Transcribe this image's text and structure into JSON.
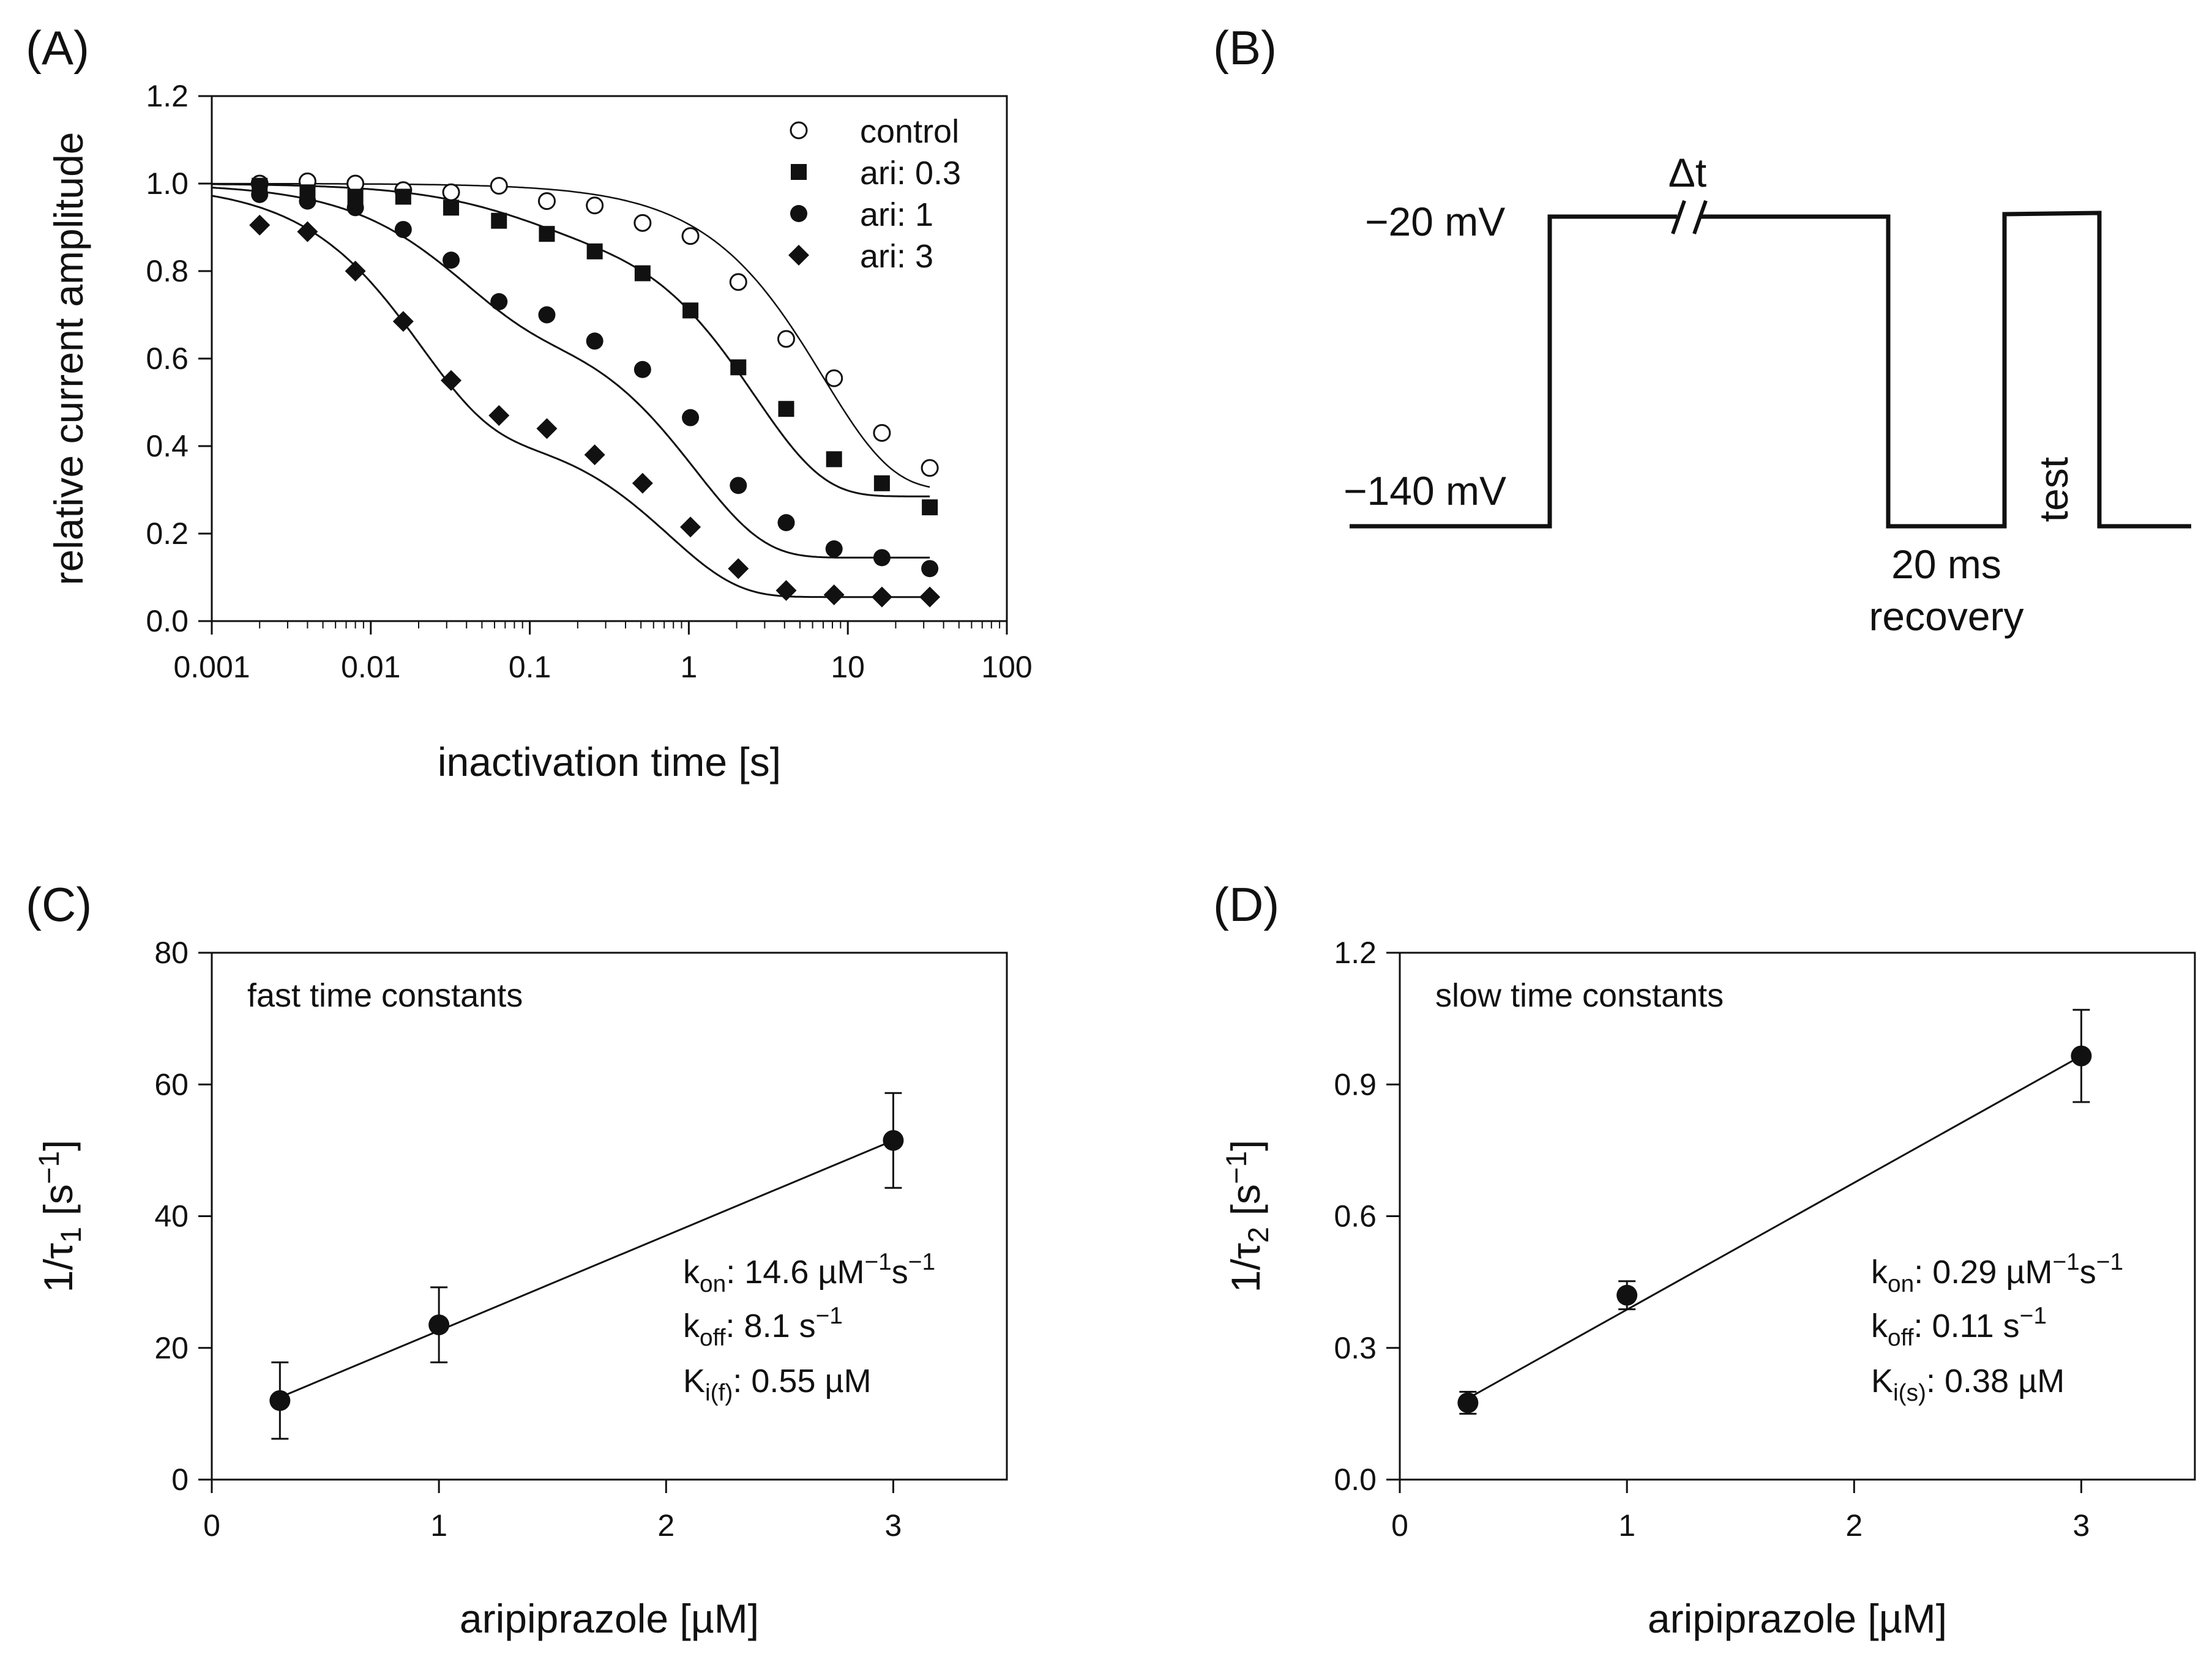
{
  "chart_data": [
    {
      "panel": "(A)",
      "type": "scatter",
      "xscale": "log",
      "xlabel": "inactivation time [s]",
      "ylabel": "relative current amplitude",
      "xlim": [
        0.001,
        100
      ],
      "ylim": [
        0.0,
        1.2
      ],
      "xticks": [
        "0.001",
        "0.01",
        "0.1",
        "1",
        "10",
        "100"
      ],
      "yticks": [
        "0.0",
        "0.2",
        "0.4",
        "0.6",
        "0.8",
        "1.0",
        "1.2"
      ],
      "legend_position": "top-right",
      "x": [
        0.002,
        0.004,
        0.008,
        0.016,
        0.032,
        0.064,
        0.128,
        0.256,
        0.512,
        1.024,
        2.048,
        4.096,
        8.192,
        16.384,
        32.768
      ],
      "series": [
        {
          "name": "control",
          "marker": "open-circle",
          "values": [
            1.0,
            1.005,
            1.0,
            0.985,
            0.98,
            0.995,
            0.96,
            0.95,
            0.91,
            0.88,
            0.775,
            0.645,
            0.555,
            0.43,
            0.35
          ],
          "fit": {
            "plateau": 0.3,
            "fast_amp": 0.0,
            "tau_fast": 0.05,
            "tau_slow": 7.0
          }
        },
        {
          "name": "ari: 0.3",
          "marker": "filled-square",
          "values": [
            0.995,
            0.98,
            0.97,
            0.97,
            0.945,
            0.915,
            0.885,
            0.845,
            0.795,
            0.71,
            0.58,
            0.485,
            0.37,
            0.315,
            0.26
          ],
          "fit": {
            "plateau": 0.285,
            "fast_amp": 0.09,
            "tau_fast": 0.08,
            "tau_slow": 2.6
          }
        },
        {
          "name": "ari: 1",
          "marker": "filled-circle",
          "values": [
            0.975,
            0.96,
            0.945,
            0.895,
            0.825,
            0.73,
            0.7,
            0.64,
            0.575,
            0.465,
            0.31,
            0.225,
            0.165,
            0.145,
            0.12
          ],
          "fit": {
            "plateau": 0.145,
            "fast_amp": 0.31,
            "tau_fast": 0.035,
            "tau_slow": 1.1
          }
        },
        {
          "name": "ari: 3",
          "marker": "filled-diamond",
          "values": [
            0.905,
            0.89,
            0.8,
            0.685,
            0.55,
            0.47,
            0.44,
            0.38,
            0.315,
            0.215,
            0.12,
            0.07,
            0.06,
            0.055,
            0.055
          ],
          "fit": {
            "plateau": 0.055,
            "fast_amp": 0.56,
            "tau_fast": 0.02,
            "tau_slow": 0.75
          }
        }
      ]
    },
    {
      "panel": "(C)",
      "type": "scatter",
      "title": "fast time constants",
      "xlabel": "aripiprazole [µM]",
      "ylabel_main": "1/τ",
      "ylabel_sub": "1",
      "ylabel_unit": " [s",
      "ylabel_sup": "−1",
      "ylabel_close": "]",
      "xlim": [
        0,
        3.5
      ],
      "ylim": [
        0,
        80
      ],
      "xticks": [
        "0",
        "1",
        "2",
        "3"
      ],
      "yticks": [
        "0",
        "20",
        "40",
        "60",
        "80"
      ],
      "x": [
        0.3,
        1,
        3
      ],
      "values": [
        12,
        23.5,
        51.5
      ],
      "errors": [
        5.8,
        5.7,
        7.2
      ],
      "fit_line": {
        "x": [
          0.3,
          3
        ],
        "y": [
          12.5,
          51.5
        ]
      },
      "annotations": {
        "kon": {
          "main": "k",
          "sub": "on",
          "text": ": 14.6 µM",
          "sup": "−1",
          "text2": "s",
          "sup2": "−1"
        },
        "koff": {
          "main": "k",
          "sub": "off",
          "text": ": 8.1 s",
          "sup": "−1"
        },
        "ki": {
          "main": "K",
          "sub": "i(f)",
          "text": ": 0.55 µM"
        }
      }
    },
    {
      "panel": "(D)",
      "type": "scatter",
      "title": "slow time constants",
      "xlabel": "aripiprazole [µM]",
      "ylabel_main": "1/τ",
      "ylabel_sub": "2",
      "ylabel_unit": " [s",
      "ylabel_sup": "−1",
      "ylabel_close": "]",
      "xlim": [
        0,
        3.5
      ],
      "ylim": [
        0,
        1.2
      ],
      "xticks": [
        "0",
        "1",
        "2",
        "3"
      ],
      "yticks": [
        "0.0",
        "0.3",
        "0.6",
        "0.9",
        "1.2"
      ],
      "x": [
        0.3,
        1,
        3
      ],
      "values": [
        0.175,
        0.42,
        0.965
      ],
      "errors": [
        0.025,
        0.032,
        0.105
      ],
      "fit_line": {
        "x": [
          0.3,
          3
        ],
        "y": [
          0.185,
          0.965
        ]
      },
      "annotations": {
        "kon": {
          "main": "k",
          "sub": "on",
          "text": ": 0.29 µM",
          "sup": "−1",
          "text2": "s",
          "sup2": "−1"
        },
        "koff": {
          "main": "k",
          "sub": "off",
          "text": ": 0.11 s",
          "sup": "−1"
        },
        "ki": {
          "main": "K",
          "sub": "i(s)",
          "text": ": 0.38 µM"
        }
      }
    }
  ],
  "protocol": {
    "panel": "(B)",
    "v_hold_label": "−140 mV",
    "v_step_label": "−20 mV",
    "delta_t_label": "Δt",
    "test_label": "test",
    "recovery_line1": "20 ms",
    "recovery_line2": "recovery"
  }
}
